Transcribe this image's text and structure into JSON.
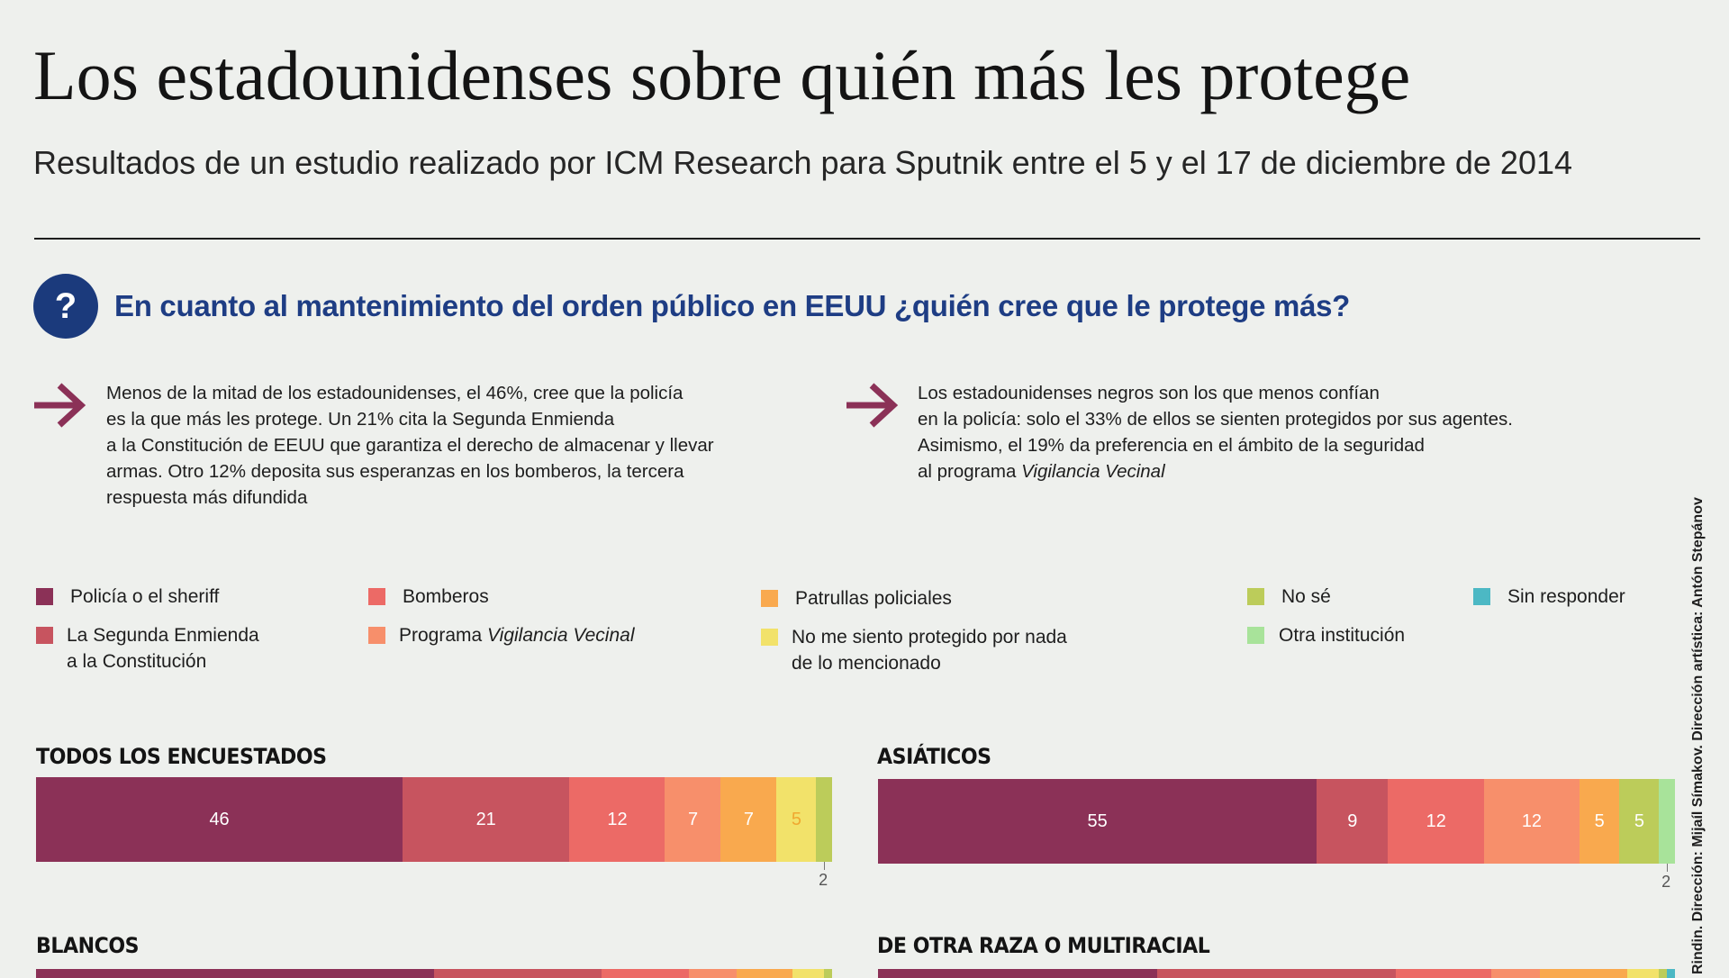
{
  "header": {
    "title": "Los estadounidenses sobre quién más les protege",
    "subtitle": "Resultados de un estudio realizado por ICM Research para Sputnik entre el 5 y el 17 de diciembre de 2014"
  },
  "question": {
    "icon": "?",
    "text": "En cuanto al mantenimiento del orden público en EEUU ¿quién cree que le protege más?"
  },
  "notes": [
    {
      "lines": [
        "Menos de la mitad de los estadounidenses, el 46%, cree que la policía",
        "es la que más les protege. Un 21% cita la Segunda Enmienda",
        "a la Constitución de EEUU que garantiza el derecho de almacenar y llevar",
        "armas. Otro 12% deposita sus esperanzas en los bomberos, la tercera",
        "respuesta más difundida"
      ]
    },
    {
      "lines": [
        "Los estadounidenses negros son los que menos confían",
        "en la policía: solo el 33% de ellos se sienten protegidos por sus agentes.",
        "Asimismo, el 19% da preferencia en el ámbito de la seguridad"
      ],
      "last_prefix": "al programa ",
      "last_italic": "Vigilancia Vecinal"
    }
  ],
  "legend": [
    {
      "key": "policia",
      "lines": [
        "Policía o el sheriff"
      ],
      "color": "#8b3157"
    },
    {
      "key": "enmienda",
      "lines": [
        "La Segunda Enmienda",
        "a la Constitución"
      ],
      "color": "#c7545f"
    },
    {
      "key": "bomberos",
      "lines": [
        "Bomberos"
      ],
      "color": "#ec6a66"
    },
    {
      "key": "vigilancia",
      "prefix": "Programa ",
      "italic": "Vigilancia Vecinal",
      "color": "#f78f6b"
    },
    {
      "key": "patrullas",
      "lines": [
        "Patrullas policiales"
      ],
      "color": "#f9a94e"
    },
    {
      "key": "nada",
      "lines": [
        "No me siento protegido por nada",
        "de lo mencionado"
      ],
      "color": "#f2e26a"
    },
    {
      "key": "nose",
      "lines": [
        "No sé"
      ],
      "color": "#bccc5a"
    },
    {
      "key": "otra",
      "lines": [
        "Otra institución"
      ],
      "color": "#a8e39a"
    },
    {
      "key": "sin",
      "lines": [
        "Sin responder"
      ],
      "color": "#4cb8c4"
    }
  ],
  "chart_data": [
    {
      "type": "bar",
      "orientation": "horizontal-stacked",
      "title": "TODOS LOS ENCUESTADOS",
      "series": [
        {
          "key": "policia",
          "value": 46
        },
        {
          "key": "enmienda",
          "value": 21
        },
        {
          "key": "bomberos",
          "value": 12
        },
        {
          "key": "vigilancia",
          "value": 7
        },
        {
          "key": "patrullas",
          "value": 7
        },
        {
          "key": "nada",
          "value": 5
        },
        {
          "key": "nose",
          "value": 2,
          "label_below": true
        }
      ]
    },
    {
      "type": "bar",
      "orientation": "horizontal-stacked",
      "title": "ASIÁTICOS",
      "series": [
        {
          "key": "policia",
          "value": 55
        },
        {
          "key": "enmienda",
          "value": 9
        },
        {
          "key": "bomberos",
          "value": 12
        },
        {
          "key": "vigilancia",
          "value": 12
        },
        {
          "key": "patrullas",
          "value": 5
        },
        {
          "key": "nose",
          "value": 5
        },
        {
          "key": "otra",
          "value": 2,
          "label_below": true
        }
      ]
    },
    {
      "type": "bar",
      "orientation": "horizontal-stacked",
      "title": "BLANCOS",
      "series": [
        {
          "key": "policia",
          "value": 50
        },
        {
          "key": "enmienda",
          "value": 21
        },
        {
          "key": "bomberos",
          "value": 11
        },
        {
          "key": "vigilancia",
          "value": 6
        },
        {
          "key": "patrullas",
          "value": 7
        },
        {
          "key": "nada",
          "value": 4
        },
        {
          "key": "nose",
          "value": 1
        }
      ]
    },
    {
      "type": "bar",
      "orientation": "horizontal-stacked",
      "title": "DE OTRA RAZA O MULTIRACIAL",
      "series": [
        {
          "key": "policia",
          "value": 35
        },
        {
          "key": "enmienda",
          "value": 30
        },
        {
          "key": "bomberos",
          "value": 12
        },
        {
          "key": "vigilancia",
          "value": 6
        },
        {
          "key": "patrullas",
          "value": 11
        },
        {
          "key": "nada",
          "value": 4
        },
        {
          "key": "nose",
          "value": 1
        },
        {
          "key": "sin",
          "value": 1
        }
      ]
    }
  ],
  "credit": "Rindin. Dirección: Mijaíl Símakov. Dirección artística: Antón Stepánov"
}
